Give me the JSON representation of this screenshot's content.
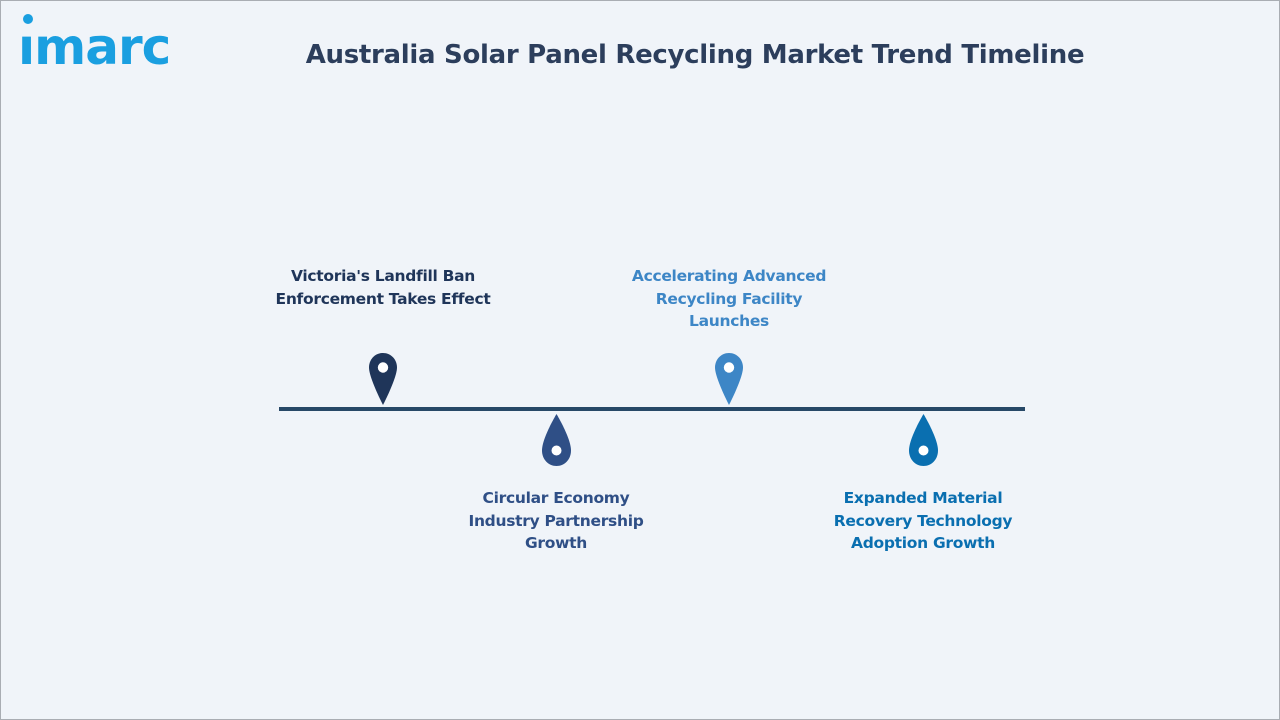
{
  "logo": {
    "text": "ımarc",
    "color": "#1a9fe0"
  },
  "title": "Australia Solar Panel Recycling Market Trend Timeline",
  "timeline": {
    "line_color": "#274867",
    "milestones": [
      {
        "label": "Victoria's Landfill Ban Enforcement Takes Effect",
        "position": "above",
        "marker": "map-pin-icon",
        "color": "#1f3559"
      },
      {
        "label": "Circular Economy Industry Partnership Growth",
        "position": "below",
        "marker": "drop-pin-icon",
        "color": "#2f4f86"
      },
      {
        "label": "Accelerating Advanced Recycling Facility Launches",
        "position": "above",
        "marker": "map-pin-icon",
        "color": "#3d86c6"
      },
      {
        "label": "Expanded Material Recovery Technology Adoption Growth",
        "position": "below",
        "marker": "drop-pin-icon",
        "color": "#0a6fb0"
      }
    ]
  }
}
